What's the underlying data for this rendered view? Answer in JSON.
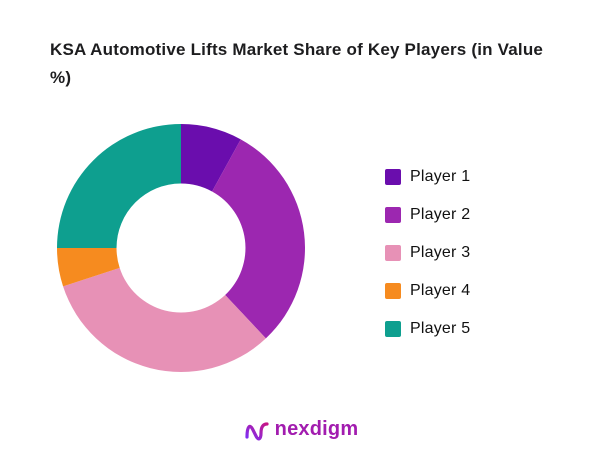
{
  "chart_data": {
    "type": "pie",
    "subtype": "donut",
    "title": "KSA Automotive Lifts Market Share of Key Players (in Value %)",
    "categories": [
      "Player 1",
      "Player 2",
      "Player 3",
      "Player 4",
      "Player 5"
    ],
    "values": [
      8,
      30,
      32,
      5,
      25
    ],
    "unit": "percent of value market share",
    "colors": [
      "#6A0DAD",
      "#9C27B0",
      "#E791B6",
      "#F68B1F",
      "#0E9F8F"
    ],
    "legend_position": "right",
    "start_angle_deg": 0,
    "direction": "clockwise",
    "inner_radius_ratio": 0.52,
    "data_labels": "none"
  },
  "brand": {
    "logo_text": "nexdigm",
    "logo_color": "#A21CAF"
  }
}
